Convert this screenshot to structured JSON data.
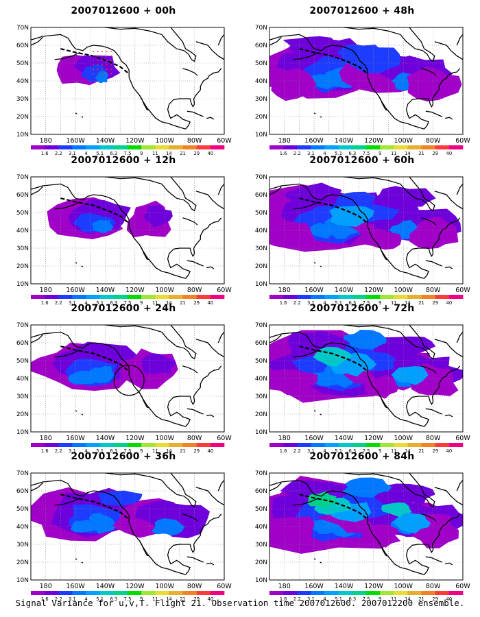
{
  "panels": [
    {
      "title": "2007012600 + 00h",
      "cloud": 0
    },
    {
      "title": "2007012600 + 48h",
      "cloud": 4
    },
    {
      "title": "2007012600 + 12h",
      "cloud": 1
    },
    {
      "title": "2007012600 + 60h",
      "cloud": 5
    },
    {
      "title": "2007012600 + 24h",
      "cloud": 2
    },
    {
      "title": "2007012600 + 72h",
      "cloud": 6
    },
    {
      "title": "2007012600 + 36h",
      "cloud": 3
    },
    {
      "title": "2007012600 + 84h",
      "cloud": 7
    }
  ],
  "lat_labels": [
    "70N",
    "60N",
    "50N",
    "40N",
    "30N",
    "20N",
    "10N"
  ],
  "lon_labels": [
    "180",
    "160W",
    "140W",
    "120W",
    "100W",
    "80W",
    "60W"
  ],
  "colorbar": {
    "levels": [
      "1.6",
      "2.2",
      "3.1",
      "4",
      "5.1",
      "6.3",
      "7.5",
      "9",
      "11",
      "14",
      "21",
      "29",
      "40"
    ],
    "colors": [
      "#a000c8",
      "#6e00dc",
      "#1e3cff",
      "#0078ff",
      "#00a0ff",
      "#00c8c8",
      "#00d28c",
      "#00dc00",
      "#a0e632",
      "#e6dc32",
      "#e6af2d",
      "#f08228",
      "#fa3c3c",
      "#f00082"
    ]
  },
  "caption": "Signal Variance for u,v,T. Flight 21. Observation time 2007012600. 2007012200 ensemble."
}
